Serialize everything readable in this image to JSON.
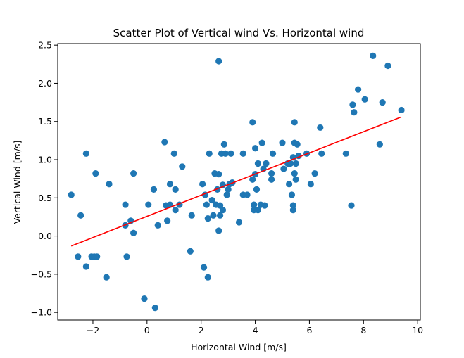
{
  "chart_data": {
    "type": "scatter",
    "title": "Scatter Plot of Vertical wind Vs. Horizontal wind",
    "xlabel": "Horizontal Wind [m/s]",
    "ylabel": "Vertical Wind [m/s]",
    "xlim": [
      -3.3,
      10.1
    ],
    "ylim": [
      -1.1,
      2.52
    ],
    "xticks": [
      {
        "value": -2,
        "label": "−2"
      },
      {
        "value": 0,
        "label": "0"
      },
      {
        "value": 2,
        "label": "2"
      },
      {
        "value": 4,
        "label": "4"
      },
      {
        "value": 6,
        "label": "6"
      },
      {
        "value": 8,
        "label": "8"
      },
      {
        "value": 10,
        "label": "10"
      }
    ],
    "yticks": [
      {
        "value": -1.0,
        "label": "−1.0"
      },
      {
        "value": -0.5,
        "label": "−0.5"
      },
      {
        "value": 0.0,
        "label": "0.0"
      },
      {
        "value": 0.5,
        "label": "0.5"
      },
      {
        "value": 1.0,
        "label": "1.0"
      },
      {
        "value": 1.5,
        "label": "1.5"
      },
      {
        "value": 2.0,
        "label": "2.0"
      },
      {
        "value": 2.5,
        "label": "2.5"
      }
    ],
    "grid": false,
    "legend": "none",
    "colors": {
      "points": "#1f77b4",
      "fit_line": "#ff0000"
    },
    "fit_line": {
      "x": [
        -2.8,
        9.4
      ],
      "y": [
        -0.13,
        1.56
      ]
    },
    "points": [
      {
        "x": -2.8,
        "y": 0.54
      },
      {
        "x": -2.55,
        "y": -0.27
      },
      {
        "x": -2.45,
        "y": 0.27
      },
      {
        "x": -2.25,
        "y": 1.08
      },
      {
        "x": -2.25,
        "y": -0.4
      },
      {
        "x": -2.05,
        "y": -0.27
      },
      {
        "x": -1.95,
        "y": -0.27
      },
      {
        "x": -1.9,
        "y": 0.82
      },
      {
        "x": -1.85,
        "y": -0.27
      },
      {
        "x": -1.5,
        "y": -0.54
      },
      {
        "x": -1.4,
        "y": 0.68
      },
      {
        "x": -0.8,
        "y": 0.41
      },
      {
        "x": -0.8,
        "y": 0.14
      },
      {
        "x": -0.75,
        "y": -0.27
      },
      {
        "x": -0.6,
        "y": 0.2
      },
      {
        "x": -0.5,
        "y": 0.82
      },
      {
        "x": -0.5,
        "y": 0.04
      },
      {
        "x": -0.1,
        "y": -0.82
      },
      {
        "x": 0.05,
        "y": 0.41
      },
      {
        "x": 0.25,
        "y": 0.61
      },
      {
        "x": 0.3,
        "y": -0.94
      },
      {
        "x": 0.4,
        "y": 0.14
      },
      {
        "x": 0.65,
        "y": 1.23
      },
      {
        "x": 0.7,
        "y": 0.4
      },
      {
        "x": 0.75,
        "y": 0.2
      },
      {
        "x": 0.85,
        "y": 0.41
      },
      {
        "x": 0.85,
        "y": 0.68
      },
      {
        "x": 1.0,
        "y": 1.08
      },
      {
        "x": 1.05,
        "y": 0.61
      },
      {
        "x": 1.05,
        "y": 0.34
      },
      {
        "x": 1.2,
        "y": 0.41
      },
      {
        "x": 1.3,
        "y": 0.91
      },
      {
        "x": 1.6,
        "y": -0.2
      },
      {
        "x": 1.65,
        "y": 0.27
      },
      {
        "x": 2.05,
        "y": 0.68
      },
      {
        "x": 2.1,
        "y": -0.41
      },
      {
        "x": 2.15,
        "y": 0.54
      },
      {
        "x": 2.2,
        "y": 0.41
      },
      {
        "x": 2.25,
        "y": -0.54
      },
      {
        "x": 2.25,
        "y": 0.23
      },
      {
        "x": 2.3,
        "y": 1.08
      },
      {
        "x": 2.4,
        "y": 0.47
      },
      {
        "x": 2.45,
        "y": 0.27
      },
      {
        "x": 2.5,
        "y": 0.82
      },
      {
        "x": 2.55,
        "y": 0.41
      },
      {
        "x": 2.6,
        "y": 0.61
      },
      {
        "x": 2.65,
        "y": 0.81
      },
      {
        "x": 2.65,
        "y": 2.29
      },
      {
        "x": 2.7,
        "y": 0.4
      },
      {
        "x": 2.7,
        "y": 0.27
      },
      {
        "x": 2.65,
        "y": 0.07
      },
      {
        "x": 2.75,
        "y": 1.08
      },
      {
        "x": 2.8,
        "y": 0.67
      },
      {
        "x": 2.8,
        "y": 0.34
      },
      {
        "x": 2.85,
        "y": 1.2
      },
      {
        "x": 2.9,
        "y": 1.08
      },
      {
        "x": 2.95,
        "y": 0.54
      },
      {
        "x": 3.0,
        "y": 0.61
      },
      {
        "x": 3.05,
        "y": 0.68
      },
      {
        "x": 3.1,
        "y": 1.08
      },
      {
        "x": 3.15,
        "y": 0.7
      },
      {
        "x": 3.4,
        "y": 0.18
      },
      {
        "x": 3.55,
        "y": 1.08
      },
      {
        "x": 3.55,
        "y": 0.54
      },
      {
        "x": 3.7,
        "y": 0.54
      },
      {
        "x": 3.9,
        "y": 1.49
      },
      {
        "x": 3.9,
        "y": 0.74
      },
      {
        "x": 3.95,
        "y": 0.41
      },
      {
        "x": 3.95,
        "y": 0.34
      },
      {
        "x": 4.0,
        "y": 1.15
      },
      {
        "x": 4.0,
        "y": 0.81
      },
      {
        "x": 4.05,
        "y": 0.61
      },
      {
        "x": 4.1,
        "y": 0.95
      },
      {
        "x": 4.1,
        "y": 0.34
      },
      {
        "x": 4.2,
        "y": 0.41
      },
      {
        "x": 4.25,
        "y": 1.22
      },
      {
        "x": 4.3,
        "y": 0.88
      },
      {
        "x": 4.35,
        "y": 0.4
      },
      {
        "x": 4.4,
        "y": 0.95
      },
      {
        "x": 4.6,
        "y": 0.82
      },
      {
        "x": 4.6,
        "y": 0.74
      },
      {
        "x": 4.65,
        "y": 1.08
      },
      {
        "x": 5.0,
        "y": 1.22
      },
      {
        "x": 5.05,
        "y": 0.88
      },
      {
        "x": 5.2,
        "y": 0.95
      },
      {
        "x": 5.25,
        "y": 0.68
      },
      {
        "x": 5.3,
        "y": 0.95
      },
      {
        "x": 5.35,
        "y": 0.54
      },
      {
        "x": 5.4,
        "y": 1.03
      },
      {
        "x": 5.4,
        "y": 0.4
      },
      {
        "x": 5.4,
        "y": 0.34
      },
      {
        "x": 5.45,
        "y": 1.49
      },
      {
        "x": 5.45,
        "y": 1.22
      },
      {
        "x": 5.45,
        "y": 0.82
      },
      {
        "x": 5.5,
        "y": 0.95
      },
      {
        "x": 5.5,
        "y": 0.74
      },
      {
        "x": 5.55,
        "y": 1.2
      },
      {
        "x": 5.6,
        "y": 1.05
      },
      {
        "x": 5.9,
        "y": 1.08
      },
      {
        "x": 6.05,
        "y": 0.68
      },
      {
        "x": 6.2,
        "y": 0.82
      },
      {
        "x": 6.4,
        "y": 1.42
      },
      {
        "x": 6.45,
        "y": 1.08
      },
      {
        "x": 7.35,
        "y": 1.08
      },
      {
        "x": 7.55,
        "y": 0.4
      },
      {
        "x": 7.6,
        "y": 1.72
      },
      {
        "x": 7.65,
        "y": 1.62
      },
      {
        "x": 7.8,
        "y": 1.92
      },
      {
        "x": 8.05,
        "y": 1.79
      },
      {
        "x": 8.35,
        "y": 2.36
      },
      {
        "x": 8.6,
        "y": 1.2
      },
      {
        "x": 8.7,
        "y": 1.75
      },
      {
        "x": 8.9,
        "y": 2.23
      },
      {
        "x": 9.4,
        "y": 1.65
      }
    ]
  }
}
